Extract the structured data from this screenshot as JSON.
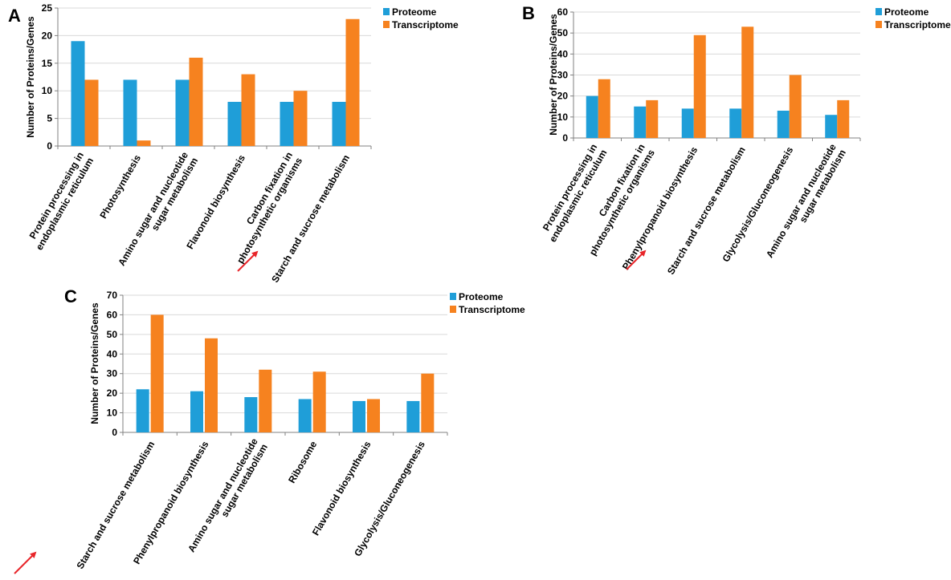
{
  "figure": {
    "colors": {
      "proteome": "#1F9ED8",
      "transcriptome": "#F6821F",
      "arrow": "#E8262A",
      "grid": "#D9D9D9",
      "axis": "#808080"
    }
  },
  "chart_data": [
    {
      "panel": "A",
      "type": "bar",
      "ylabel": "Number of Proteins/Genes",
      "ylim": [
        0,
        25
      ],
      "yticks": [
        0,
        5,
        10,
        15,
        20,
        25
      ],
      "grid": true,
      "legend_position": "top-right",
      "categories": [
        [
          "Protein processing in",
          "endoplasmic reticulum"
        ],
        [
          "Photosynthesis"
        ],
        [
          "Amino sugar and nucleotide",
          "sugar metabolism"
        ],
        [
          "Flavonoid biosynthesis"
        ],
        [
          "Carbon fixation in",
          "photosynthetic organisms"
        ],
        [
          "Starch and sucrose metabolism"
        ]
      ],
      "series": [
        {
          "name": "Proteome",
          "values": [
            19,
            12,
            12,
            8,
            8,
            8
          ]
        },
        {
          "name": "Transcriptome",
          "values": [
            12,
            1,
            16,
            13,
            10,
            23
          ]
        }
      ],
      "highlight_index": 5
    },
    {
      "panel": "B",
      "type": "bar",
      "ylabel": "Number of Proteins/Genes",
      "ylim": [
        0,
        60
      ],
      "yticks": [
        0,
        10,
        20,
        30,
        40,
        50,
        60
      ],
      "grid": true,
      "legend_position": "top-right",
      "categories": [
        [
          "Protein processing in",
          "endoplasmic reticulum"
        ],
        [
          "Carbon fixation in",
          "photosynthetic organisms"
        ],
        [
          "Phenylpropanoid biosynthesis"
        ],
        [
          "Starch and sucrose metabolism"
        ],
        [
          "Glycolysis/Gluconeogenesis"
        ],
        [
          "Amino sugar and nucleotide",
          "sugar metabolism"
        ]
      ],
      "series": [
        {
          "name": "Proteome",
          "values": [
            20,
            15,
            14,
            14,
            13,
            11
          ]
        },
        {
          "name": "Transcriptome",
          "values": [
            28,
            18,
            49,
            53,
            30,
            18
          ]
        }
      ],
      "highlight_index": 3
    },
    {
      "panel": "C",
      "type": "bar",
      "ylabel": "Number of Proteins/Genes",
      "ylim": [
        0,
        70
      ],
      "yticks": [
        0,
        10,
        20,
        30,
        40,
        50,
        60,
        70
      ],
      "grid": true,
      "legend_position": "top-right",
      "categories": [
        [
          "Starch and sucrose metabolism"
        ],
        [
          "Phenylpropanoid biosynthesis"
        ],
        [
          "Amino sugar and nucleotide",
          "sugar metabolism"
        ],
        [
          "Ribosome"
        ],
        [
          "Flavonoid biosynthesis"
        ],
        [
          "Glycolysis/Gluconeogenesis"
        ]
      ],
      "series": [
        {
          "name": "Proteome",
          "values": [
            22,
            21,
            18,
            17,
            16,
            16
          ]
        },
        {
          "name": "Transcriptome",
          "values": [
            60,
            48,
            32,
            31,
            17,
            30
          ]
        }
      ],
      "highlight_index": 0
    }
  ]
}
